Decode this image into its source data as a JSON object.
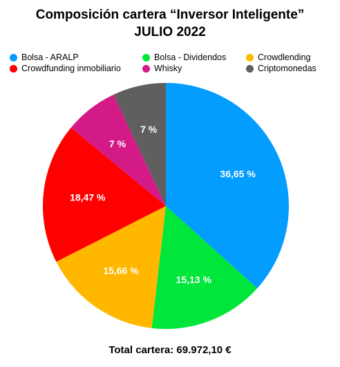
{
  "title_line1": "Composición cartera “Inversor Inteligente”",
  "title_line2": "JULIO 2022",
  "chart_data": {
    "type": "pie",
    "slices": [
      {
        "name": "Bolsa - ARALP",
        "value": 36.65,
        "label": "36,65 %",
        "color": "#039CFF"
      },
      {
        "name": "Bolsa - Dividendos",
        "value": 15.13,
        "label": "15,13 %",
        "color": "#00E63B"
      },
      {
        "name": "Crowdlending",
        "value": 15.66,
        "label": "15,66 %",
        "color": "#FFB700"
      },
      {
        "name": "Crowdfunding inmobiliario",
        "value": 18.47,
        "label": "18,47 %",
        "color": "#FF0000"
      },
      {
        "name": "Whisky",
        "value": 7,
        "label": "7 %",
        "color": "#D31A86"
      },
      {
        "name": "Criptomonedas",
        "value": 7,
        "label": "7 %",
        "color": "#5F5F5F"
      }
    ],
    "legend_placement": "top"
  },
  "legend": [
    {
      "label": "Bolsa - ARALP",
      "color": "#039CFF"
    },
    {
      "label": "Bolsa - Dividendos",
      "color": "#00E63B"
    },
    {
      "label": "Crowdlending",
      "color": "#FFB700"
    },
    {
      "label": "Crowdfunding inmobiliario",
      "color": "#FF0000"
    },
    {
      "label": "Whisky",
      "color": "#D31A86"
    },
    {
      "label": "Criptomonedas",
      "color": "#5F5F5F"
    }
  ],
  "total_text": "Total cartera: 69.972,10 €"
}
